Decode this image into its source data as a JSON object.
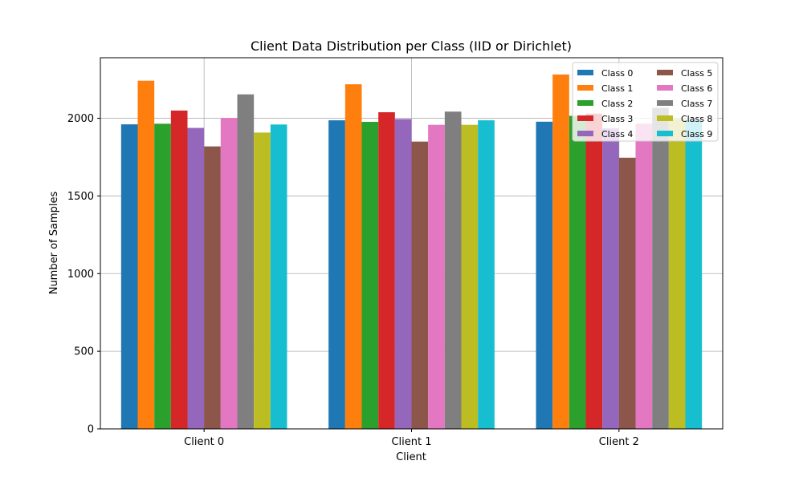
{
  "chart_data": {
    "type": "bar",
    "title": "Client Data Distribution per Class (IID or Dirichlet)",
    "xlabel": "Client",
    "ylabel": "Number of Samples",
    "categories": [
      "Client 0",
      "Client 1",
      "Client 2"
    ],
    "ylim": [
      0,
      2390
    ],
    "yticks": [
      0,
      500,
      1000,
      1500,
      2000
    ],
    "grid": true,
    "legend_position": "top-right",
    "legend_columns": 2,
    "series": [
      {
        "name": "Class 0",
        "color": "#1f77b4",
        "values": [
          1961,
          1987,
          1978
        ]
      },
      {
        "name": "Class 1",
        "color": "#ff7f0e",
        "values": [
          2242,
          2219,
          2282
        ]
      },
      {
        "name": "Class 2",
        "color": "#2ca02c",
        "values": [
          1965,
          1977,
          2016
        ]
      },
      {
        "name": "Class 3",
        "color": "#d62728",
        "values": [
          2050,
          2039,
          2030
        ]
      },
      {
        "name": "Class 4",
        "color": "#9467bd",
        "values": [
          1938,
          1995,
          1935
        ]
      },
      {
        "name": "Class 5",
        "color": "#8c564b",
        "values": [
          1819,
          1850,
          1746
        ]
      },
      {
        "name": "Class 6",
        "color": "#e377c2",
        "values": [
          2002,
          1958,
          1966
        ]
      },
      {
        "name": "Class 7",
        "color": "#7f7f7f",
        "values": [
          2154,
          2043,
          2067
        ]
      },
      {
        "name": "Class 8",
        "color": "#bcbd22",
        "values": [
          1908,
          1958,
          1996
        ]
      },
      {
        "name": "Class 9",
        "color": "#17becf",
        "values": [
          1960,
          1987,
          1990
        ]
      }
    ]
  }
}
